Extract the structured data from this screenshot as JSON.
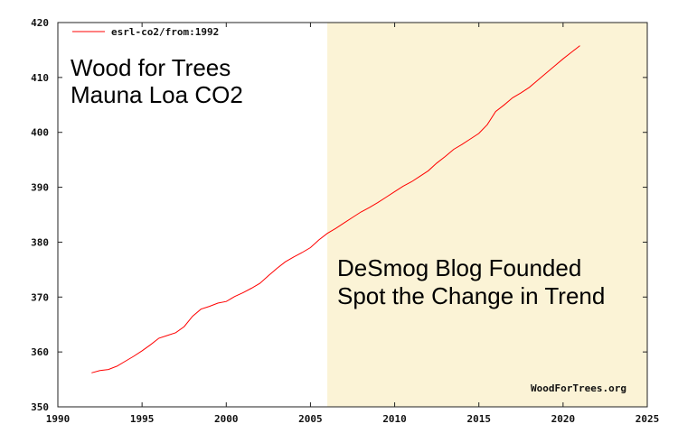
{
  "chart_data": {
    "type": "line",
    "title": "",
    "xlabel": "",
    "ylabel": "",
    "xlim": [
      1990,
      2025
    ],
    "ylim": [
      350,
      420
    ],
    "x_ticks": [
      "1990",
      "1995",
      "2000",
      "2005",
      "2010",
      "2015",
      "2020",
      "2025"
    ],
    "y_ticks": [
      "350",
      "360",
      "370",
      "380",
      "390",
      "400",
      "410",
      "420"
    ],
    "grid": false,
    "legend_placement": "top-left",
    "series": [
      {
        "name": "esrl-co2/from:1992",
        "color": "#ff0000",
        "x": [
          1992,
          1992.5,
          1993,
          1993.5,
          1994,
          1994.5,
          1995,
          1995.5,
          1996,
          1996.5,
          1997,
          1997.5,
          1998,
          1998.5,
          1999,
          1999.5,
          2000,
          2000.5,
          2001,
          2001.5,
          2002,
          2002.5,
          2003,
          2003.5,
          2004,
          2004.5,
          2005,
          2005.5,
          2006,
          2006.5,
          2007,
          2007.5,
          2008,
          2008.5,
          2009,
          2009.5,
          2010,
          2010.5,
          2011,
          2011.5,
          2012,
          2012.5,
          2013,
          2013.5,
          2014,
          2014.5,
          2015,
          2015.5,
          2016,
          2016.5,
          2017,
          2017.5,
          2018,
          2018.5,
          2019,
          2019.5,
          2020,
          2020.5,
          2021
        ],
        "values": [
          356.2,
          356.6,
          356.8,
          357.4,
          358.3,
          359.2,
          360.2,
          361.3,
          362.5,
          363.0,
          363.5,
          364.6,
          366.5,
          367.8,
          368.3,
          368.9,
          369.2,
          370.1,
          370.8,
          371.6,
          372.5,
          373.9,
          375.2,
          376.4,
          377.3,
          378.1,
          379.0,
          380.4,
          381.6,
          382.5,
          383.5,
          384.5,
          385.5,
          386.3,
          387.2,
          388.2,
          389.2,
          390.2,
          391.0,
          392.0,
          393.0,
          394.4,
          395.6,
          396.9,
          397.8,
          398.8,
          399.8,
          401.4,
          403.8,
          405.0,
          406.3,
          407.2,
          408.2,
          409.5,
          410.8,
          412.1,
          413.4,
          414.6,
          415.8
        ]
      }
    ],
    "shaded_region": {
      "x_from": 2006,
      "x_to": 2025,
      "color": "#fbf3d6"
    },
    "annotations": {
      "title_line1": "Wood for Trees",
      "title_line2": "Mauna Loa CO2",
      "note_line1": "DeSmog Blog Founded",
      "note_line2": "Spot the Change in Trend",
      "watermark": "WoodForTrees.org"
    }
  }
}
